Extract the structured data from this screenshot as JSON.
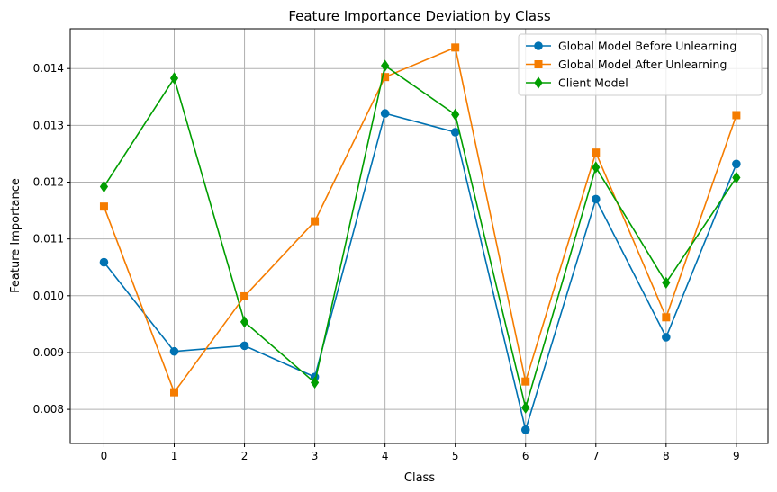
{
  "chart_data": {
    "type": "line",
    "title": "Feature Importance Deviation by Class",
    "xlabel": "Class",
    "ylabel": "Feature Importance",
    "categories": [
      "0",
      "1",
      "2",
      "3",
      "4",
      "5",
      "6",
      "7",
      "8",
      "9"
    ],
    "x": [
      0,
      1,
      2,
      3,
      4,
      5,
      6,
      7,
      8,
      9
    ],
    "xlim": [
      -0.48,
      9.45
    ],
    "ylim": [
      0.0074,
      0.0147
    ],
    "yticks": [
      0.008,
      0.009,
      0.01,
      0.011,
      0.012,
      0.013,
      0.014
    ],
    "ytick_labels": [
      "0.008",
      "0.009",
      "0.010",
      "0.011",
      "0.012",
      "0.013",
      "0.014"
    ],
    "grid": true,
    "legend_position": "top-right",
    "series": [
      {
        "name": "Global Model Before Unlearning",
        "color": "#0072b2",
        "marker": "circle",
        "values": [
          0.01059,
          0.00902,
          0.00912,
          0.00857,
          0.01321,
          0.01288,
          0.00764,
          0.0117,
          0.00927,
          0.01232
        ]
      },
      {
        "name": "Global Model After Unlearning",
        "color": "#f57c00",
        "marker": "square",
        "values": [
          0.01157,
          0.0083,
          0.00999,
          0.01131,
          0.01385,
          0.01437,
          0.00849,
          0.01252,
          0.00962,
          0.01318
        ]
      },
      {
        "name": "Client Model",
        "color": "#009e00",
        "marker": "diamond",
        "values": [
          0.01192,
          0.01383,
          0.00954,
          0.00847,
          0.01405,
          0.01319,
          0.00803,
          0.01226,
          0.01023,
          0.01208
        ]
      }
    ]
  }
}
